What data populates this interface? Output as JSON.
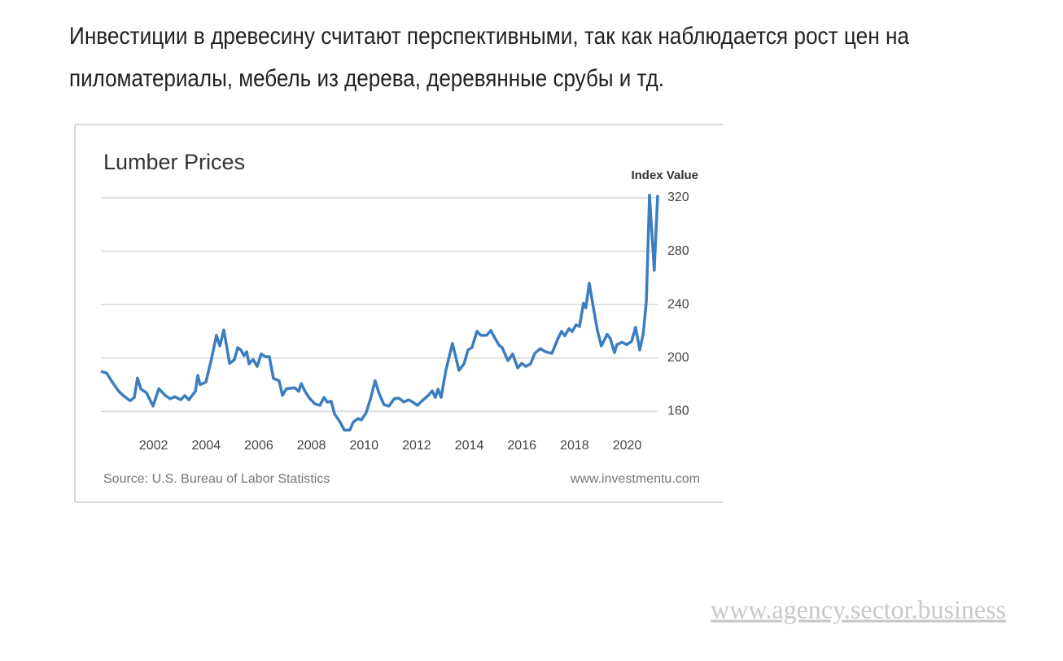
{
  "heading": {
    "lines": [
      "Инвестиции в древесину считают перспективными, так как наблюдается рост цен на",
      "пиломатериалы, мебель из дерева, деревянные срубы и тд."
    ]
  },
  "chart_data": {
    "type": "line",
    "title": "Lumber Prices",
    "y_axis_label": "Index Value",
    "source": "Source: U.S. Bureau of Labor Statistics",
    "credit": "www.investmentu.com",
    "x": [
      2000.0,
      2000.22,
      2000.43,
      2000.68,
      2000.9,
      2001.11,
      2001.27,
      2001.39,
      2001.52,
      2001.73,
      2001.98,
      2002.2,
      2002.44,
      2002.63,
      2002.81,
      2003.03,
      2003.19,
      2003.34,
      2003.59,
      2003.68,
      2003.77,
      2003.99,
      2004.21,
      2004.39,
      2004.52,
      2004.67,
      2004.89,
      2005.07,
      2005.2,
      2005.32,
      2005.44,
      2005.54,
      2005.63,
      2005.78,
      2005.94,
      2006.09,
      2006.25,
      2006.4,
      2006.56,
      2006.77,
      2006.9,
      2007.05,
      2007.36,
      2007.52,
      2007.61,
      2007.76,
      2007.92,
      2008.13,
      2008.32,
      2008.48,
      2008.6,
      2008.75,
      2008.88,
      2009.09,
      2009.25,
      2009.46,
      2009.59,
      2009.77,
      2009.9,
      2010.08,
      2010.24,
      2010.42,
      2010.58,
      2010.76,
      2010.95,
      2011.14,
      2011.32,
      2011.51,
      2011.69,
      2011.85,
      2012.03,
      2012.25,
      2012.43,
      2012.59,
      2012.71,
      2012.81,
      2012.93,
      2013.11,
      2013.36,
      2013.61,
      2013.8,
      2013.95,
      2014.1,
      2014.29,
      2014.44,
      2014.66,
      2014.82,
      2014.97,
      2015.13,
      2015.25,
      2015.47,
      2015.65,
      2015.84,
      2015.99,
      2016.15,
      2016.33,
      2016.49,
      2016.7,
      2016.89,
      2017.14,
      2017.38,
      2017.51,
      2017.63,
      2017.79,
      2017.91,
      2018.06,
      2018.19,
      2018.34,
      2018.43,
      2018.56,
      2018.74,
      2018.87,
      2019.02,
      2019.24,
      2019.36,
      2019.52,
      2019.61,
      2019.8,
      2019.98,
      2020.17,
      2020.32,
      2020.48,
      2020.61,
      2020.73,
      2020.85,
      2021.03,
      2021.16
    ],
    "series": [
      {
        "name": "Lumber",
        "color": "#3b7dbf",
        "values": [
          190,
          188.6,
          182,
          175,
          171,
          168,
          170.5,
          185,
          176.7,
          174,
          164,
          177,
          172,
          169.5,
          171,
          168.7,
          171.8,
          168.7,
          175,
          187,
          180,
          182,
          200,
          217,
          209,
          221,
          196,
          198.6,
          207.8,
          206,
          201.7,
          204.7,
          195.6,
          199,
          193.7,
          203,
          201,
          201,
          184.6,
          183,
          172,
          177,
          177.7,
          175,
          180.9,
          175,
          170,
          165.7,
          164.5,
          170.5,
          167,
          167.6,
          158,
          152,
          146,
          146,
          152,
          154.7,
          153.6,
          159,
          169,
          183,
          173,
          165,
          164,
          169.4,
          170,
          167,
          168.7,
          167,
          164.5,
          168.7,
          171.8,
          175.4,
          170.5,
          176.7,
          170.5,
          190.7,
          211,
          190.7,
          195.6,
          206,
          207.8,
          220,
          217,
          217,
          220.6,
          215,
          209.6,
          207.8,
          198,
          203,
          192.5,
          196,
          193.7,
          195.6,
          203.5,
          207,
          204.7,
          203.5,
          215,
          220,
          216.6,
          222,
          219.8,
          224.8,
          223.6,
          241,
          237.6,
          256,
          235,
          220.6,
          209,
          217.7,
          214.6,
          204,
          210,
          211.8,
          210,
          212.4,
          223,
          206,
          218,
          242.5,
          322,
          265.7,
          322
        ]
      }
    ],
    "xlim": [
      2000,
      2021.16
    ],
    "xticks": [
      2002,
      2004,
      2006,
      2008,
      2010,
      2012,
      2014,
      2016,
      2018,
      2020
    ],
    "ylim": [
      145,
      323
    ],
    "yticks": [
      160,
      200,
      240,
      280,
      320
    ],
    "grid": true
  },
  "watermark": "www.agency.sector.business"
}
